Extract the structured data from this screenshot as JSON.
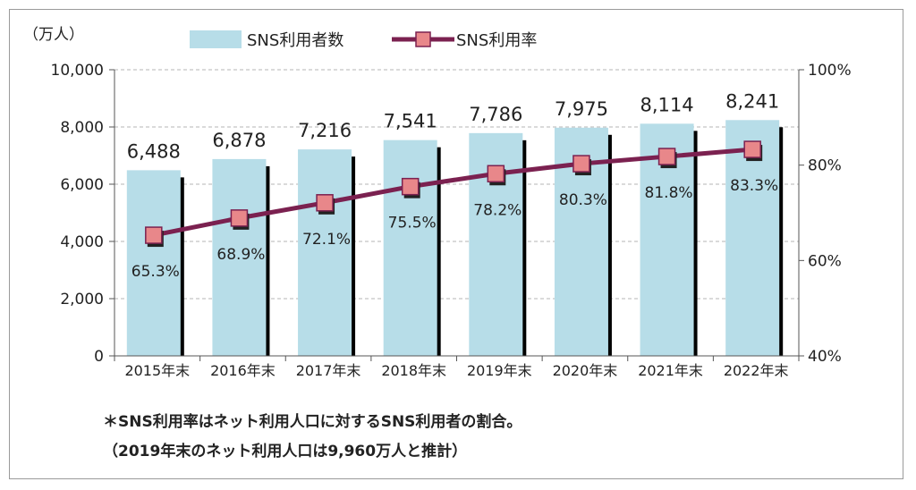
{
  "chart_data": {
    "type": "bar+line",
    "y_unit_label": "（万人）",
    "categories": [
      "2015年末",
      "2016年末",
      "2017年末",
      "2018年末",
      "2019年末",
      "2020年末",
      "2021年末",
      "2022年末"
    ],
    "series": [
      {
        "name": "SNS利用者数",
        "type": "bar",
        "axis": "left",
        "values": [
          6488,
          6878,
          7216,
          7541,
          7786,
          7975,
          8114,
          8241
        ],
        "labels": [
          "6,488",
          "6,878",
          "7,216",
          "7,541",
          "7,786",
          "7,975",
          "8,114",
          "8,241"
        ],
        "color": "#b7dde8"
      },
      {
        "name": "SNS利用率",
        "type": "line",
        "axis": "right",
        "values": [
          65.3,
          68.9,
          72.1,
          75.5,
          78.2,
          80.3,
          81.8,
          83.3
        ],
        "labels": [
          "65.3%",
          "68.9%",
          "72.1%",
          "75.5%",
          "78.2%",
          "80.3%",
          "81.8%",
          "83.3%"
        ],
        "color": "#7b2150",
        "marker_color": "#e8878a"
      }
    ],
    "left_axis": {
      "ylim": [
        0,
        10000
      ],
      "ticks": [
        "0",
        "2,000",
        "4,000",
        "6,000",
        "8,000",
        "10,000"
      ]
    },
    "right_axis": {
      "ylim": [
        40,
        100
      ],
      "ticks": [
        "40%",
        "60%",
        "80%",
        "100%"
      ]
    },
    "grid": true,
    "legend": "top"
  },
  "notes": [
    "＊SNS利用率はネット利用人口に対するSNS利用者の割合。",
    "（2019年末のネット利用人口は9,960万人と推計）"
  ]
}
